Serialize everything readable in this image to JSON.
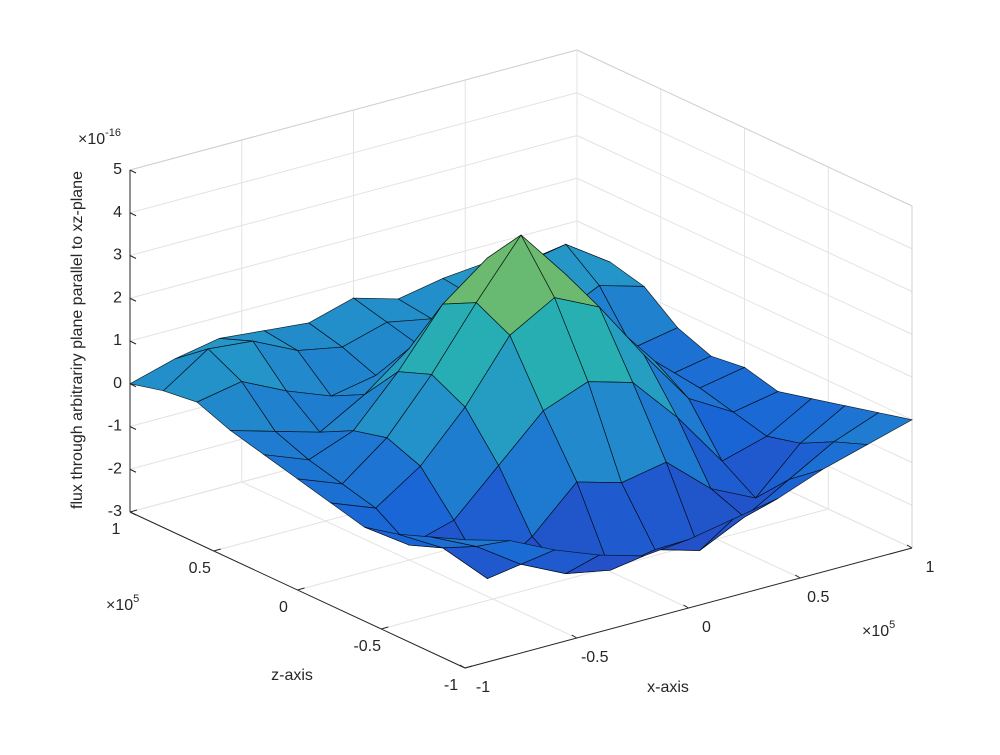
{
  "chart_data": {
    "type": "surface",
    "xlabel": "x-axis",
    "ylabel": "z-axis",
    "zlabel": "flux through arbitrariry plane parallel to xz-plane",
    "x_multiplier": {
      "base": "×10",
      "power": "5"
    },
    "y_multiplier": {
      "base": "×10",
      "power": "5"
    },
    "z_multiplier": {
      "base": "×10",
      "power": "-16"
    },
    "xlim": [
      -1,
      1
    ],
    "xticks": [
      -1,
      -0.5,
      0,
      0.5,
      1
    ],
    "ylim": [
      -1,
      1
    ],
    "yticks": [
      -1,
      -0.5,
      0,
      0.5,
      1
    ],
    "zlim": [
      -3,
      5
    ],
    "zticks": [
      -3,
      -2,
      -1,
      0,
      1,
      2,
      3,
      4,
      5
    ],
    "grid": true,
    "edge_color": "#000000",
    "x": [
      -1,
      -0.8,
      -0.6,
      -0.4,
      -0.2,
      0,
      0.2,
      0.4,
      0.6,
      0.8,
      1
    ],
    "y": [
      -1,
      -0.8,
      -0.6,
      -0.4,
      -0.2,
      0,
      0.2,
      0.4,
      0.6,
      0.8,
      1
    ],
    "z": [
      [
        0.0,
        -0.3,
        -0.8,
        -1.2,
        -1.5,
        -1.4,
        -1.2,
        -1.0,
        -0.6,
        -0.3,
        0.0
      ],
      [
        -0.3,
        -0.8,
        -1.5,
        -2.0,
        -2.2,
        -2.0,
        -2.3,
        -1.8,
        -1.2,
        -0.6,
        -0.2
      ],
      [
        -0.6,
        -1.2,
        -2.2,
        -1.5,
        -0.5,
        -0.8,
        -0.6,
        -1.5,
        -2.0,
        -1.0,
        -0.4
      ],
      [
        -0.8,
        -1.5,
        -1.2,
        -0.2,
        0.8,
        1.2,
        0.9,
        -0.2,
        -1.5,
        -1.2,
        -0.6
      ],
      [
        -0.6,
        -1.0,
        -0.3,
        0.8,
        2.2,
        2.8,
        2.3,
        0.9,
        -0.4,
        -1.0,
        -0.8
      ],
      [
        -0.4,
        -0.8,
        0.0,
        1.2,
        2.6,
        3.9,
        2.7,
        1.3,
        0.1,
        -0.8,
        -0.6
      ],
      [
        -0.2,
        -0.6,
        -0.2,
        0.9,
        2.2,
        3.0,
        2.4,
        0.8,
        -0.3,
        -0.9,
        -0.7
      ],
      [
        0.0,
        -0.3,
        -0.6,
        0.0,
        0.8,
        1.3,
        0.9,
        0.1,
        -0.5,
        -0.6,
        -0.4
      ],
      [
        0.3,
        0.5,
        0.0,
        -0.4,
        -0.2,
        0.2,
        0.0,
        -0.3,
        0.0,
        0.5,
        0.2
      ],
      [
        0.2,
        0.9,
        0.8,
        0.3,
        0.1,
        0.4,
        0.2,
        0.4,
        0.9,
        1.1,
        0.4
      ],
      [
        0.0,
        0.3,
        0.5,
        0.4,
        0.3,
        0.6,
        0.3,
        0.5,
        0.6,
        0.4,
        0.0
      ]
    ]
  }
}
